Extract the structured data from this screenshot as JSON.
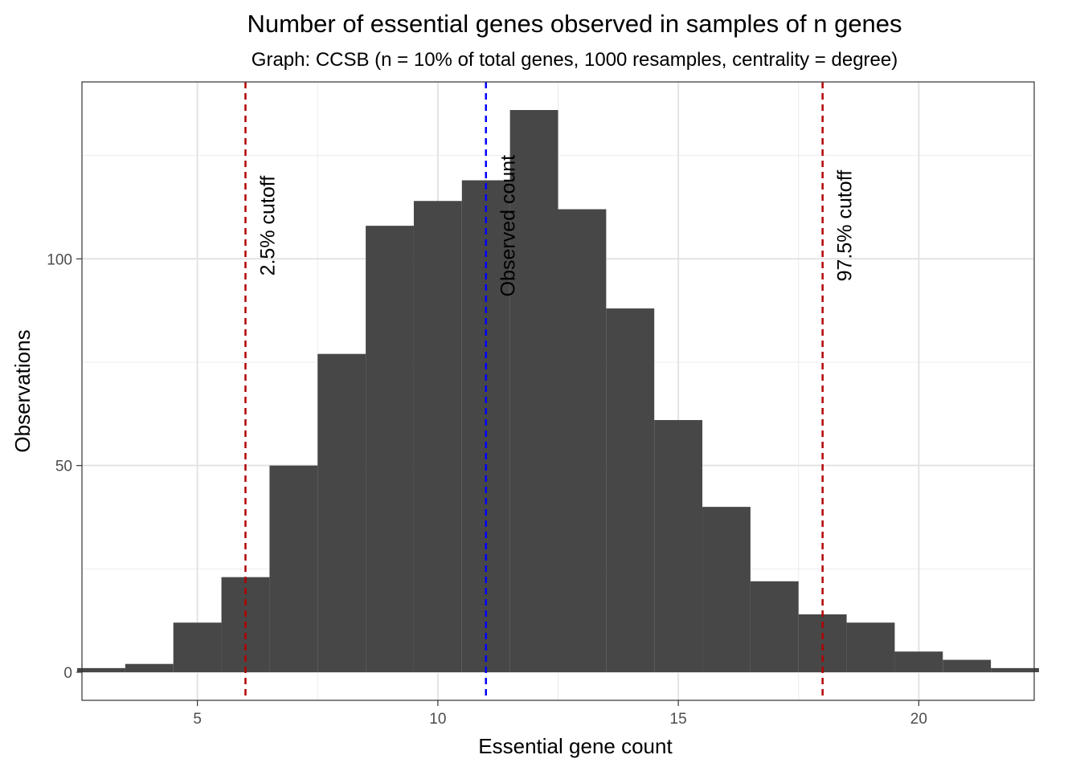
{
  "chart_data": {
    "type": "bar",
    "title": "Number of essential genes observed in samples of n genes",
    "subtitle": "Graph: CCSB (n = 10% of total genes, 1000 resamples, centrality = degree)",
    "xlabel": "Essential gene count",
    "ylabel": "Observations",
    "xlim": [
      2.6,
      22.4
    ],
    "ylim": [
      0,
      136
    ],
    "x_ticks": [
      5,
      10,
      15,
      20
    ],
    "y_ticks": [
      0,
      50,
      100
    ],
    "grid": true,
    "bar_color": "#474747",
    "bins": [
      {
        "x": 3,
        "value": 1
      },
      {
        "x": 4,
        "value": 2
      },
      {
        "x": 5,
        "value": 12
      },
      {
        "x": 6,
        "value": 23
      },
      {
        "x": 7,
        "value": 50
      },
      {
        "x": 8,
        "value": 77
      },
      {
        "x": 9,
        "value": 108
      },
      {
        "x": 10,
        "value": 114
      },
      {
        "x": 11,
        "value": 119
      },
      {
        "x": 12,
        "value": 136
      },
      {
        "x": 13,
        "value": 112
      },
      {
        "x": 14,
        "value": 88
      },
      {
        "x": 15,
        "value": 61
      },
      {
        "x": 16,
        "value": 40
      },
      {
        "x": 17,
        "value": 22
      },
      {
        "x": 18,
        "value": 14
      },
      {
        "x": 19,
        "value": 12
      },
      {
        "x": 20,
        "value": 5
      },
      {
        "x": 21,
        "value": 3
      },
      {
        "x": 22,
        "value": 1
      }
    ],
    "reference_lines": [
      {
        "x": 6,
        "label": "2.5% cutoff",
        "color": "#b20000"
      },
      {
        "x": 11,
        "label": "Observed count",
        "color": "#0000ff"
      },
      {
        "x": 18,
        "label": "97.5% cutoff",
        "color": "#b20000"
      }
    ]
  }
}
